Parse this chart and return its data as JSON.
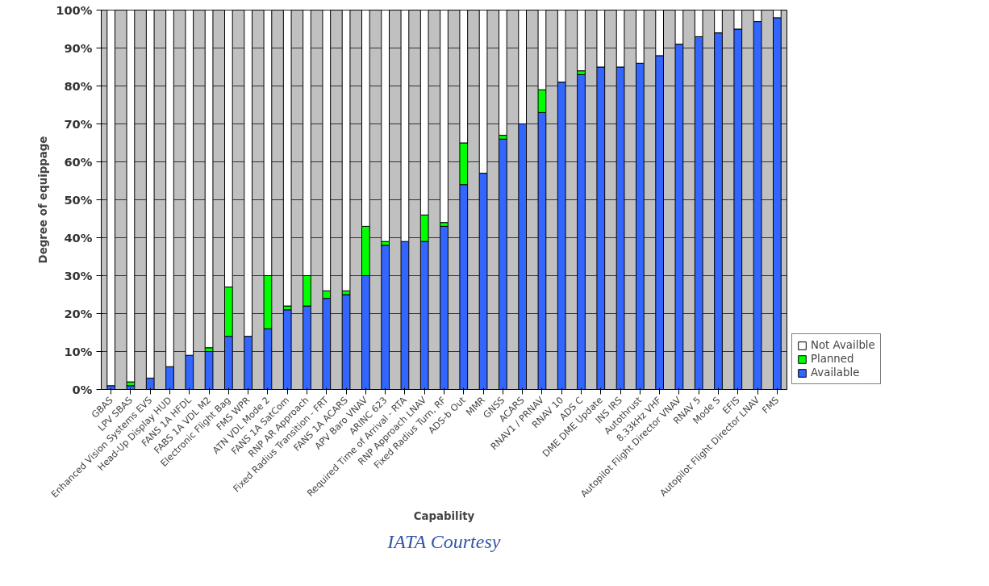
{
  "chart_data": {
    "type": "bar",
    "stacked": true,
    "xlabel": "Capability",
    "ylabel": "Degree of equippage",
    "annotations": [
      "IATA Courtesy"
    ],
    "categories": [
      "GBAS",
      "LPV SBAS",
      "Enhanced Vision Systems EVS",
      "Head-Up Display HUD",
      "FANS 1A HFDL",
      "FABS 1A VDL M2",
      "Electronic Flight Bag",
      "FMS WPR",
      "ATN VDL Mode 2",
      "FANS 1A SatCom",
      "RNP AR Approach",
      "Fixed Radius Transition - FRT",
      "FANS 1A ACARS",
      "APV Baro VNAV",
      "ARINC 623",
      "Required Time of Arrival - RTA",
      "RNP Approach LNAV",
      "Fixed Radius Turn, RF",
      "ADS-b Out",
      "MMR",
      "GNSS",
      "ACARS",
      "RNAV1 / PRNAV",
      "RNAV 10",
      "ADS C",
      "DME DME Update",
      "INS IRS",
      "Autothrust",
      "8.33kHz VHF",
      "Autopilot Flight Director VNAV",
      "RNAV 5",
      "Mode S",
      "EFIS",
      "Autopilot Flight Director LNAV",
      "FMS"
    ],
    "series": [
      {
        "name": "Available",
        "color": "#3366ff",
        "values": [
          1,
          1,
          3,
          6,
          9,
          10,
          14,
          14,
          16,
          21,
          22,
          24,
          25,
          30,
          38,
          39,
          39,
          43,
          54,
          57,
          66,
          70,
          73,
          81,
          83,
          85,
          85,
          86,
          88,
          91,
          93,
          94,
          95,
          97,
          98
        ]
      },
      {
        "name": "Planned",
        "color": "#00ff00",
        "values": [
          0,
          1,
          0,
          0,
          0,
          1,
          13,
          0,
          14,
          1,
          8,
          2,
          1,
          13,
          1,
          0,
          7,
          1,
          11,
          0,
          1,
          0,
          6,
          0,
          1,
          0,
          0,
          0,
          0,
          0,
          0,
          0,
          0,
          0,
          0
        ]
      },
      {
        "name": "Not Availble",
        "color": "#ffffff",
        "values": [
          99,
          98,
          97,
          94,
          91,
          89,
          73,
          86,
          70,
          78,
          70,
          74,
          74,
          57,
          61,
          61,
          54,
          56,
          35,
          43,
          33,
          30,
          21,
          19,
          16,
          15,
          15,
          14,
          12,
          9,
          7,
          6,
          5,
          3,
          2
        ]
      }
    ],
    "ylim": [
      0,
      100
    ],
    "yticks": [
      {
        "value": 0,
        "label": "0%"
      },
      {
        "value": 10,
        "label": "10%"
      },
      {
        "value": 20,
        "label": "20%"
      },
      {
        "value": 30,
        "label": "30%"
      },
      {
        "value": 40,
        "label": "40%"
      },
      {
        "value": 50,
        "label": "50%"
      },
      {
        "value": 60,
        "label": "60%"
      },
      {
        "value": 70,
        "label": "70%"
      },
      {
        "value": 80,
        "label": "80%"
      },
      {
        "value": 90,
        "label": "90%"
      },
      {
        "value": 100,
        "label": "100%"
      }
    ],
    "grid": "y",
    "legend": "bottom right"
  }
}
